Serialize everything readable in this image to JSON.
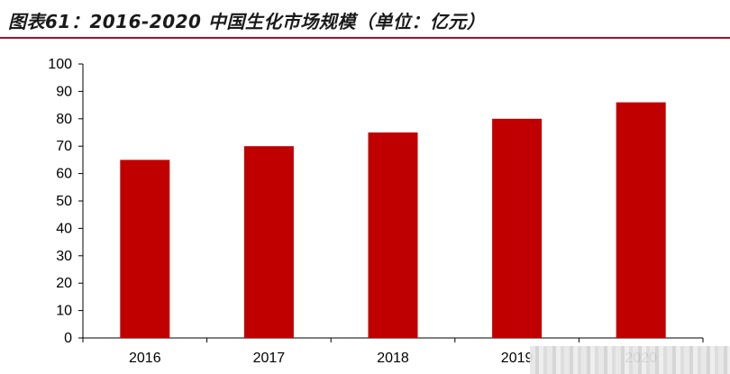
{
  "title": "图表61：2016-2020 中国生化市场规模（单位：亿元）",
  "colors": {
    "bar": "#c00000",
    "rule": "#a7122c"
  },
  "chart_data": {
    "type": "bar",
    "title": "图表61：2016-2020 中国生化市场规模（单位：亿元）",
    "categories": [
      "2016",
      "2017",
      "2018",
      "2019",
      "2020"
    ],
    "values": [
      65,
      70,
      75,
      80,
      86
    ],
    "ylim": [
      0,
      100
    ],
    "yticks": [
      0,
      10,
      20,
      30,
      40,
      50,
      60,
      70,
      80,
      90,
      100
    ],
    "xlabel": "",
    "ylabel": "",
    "grid": false,
    "legend": false
  }
}
